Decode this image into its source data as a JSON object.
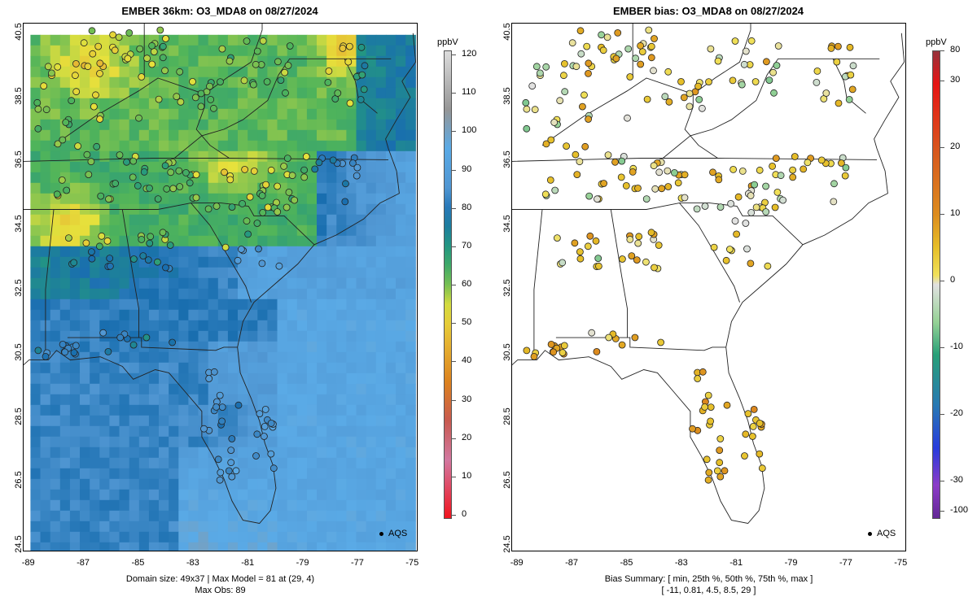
{
  "left": {
    "title": "EMBER 36km: O3_MDA8 on 08/27/2024",
    "colorbar_unit": "ppbV",
    "colorbar_ticks": [
      "0",
      "10",
      "20",
      "30",
      "40",
      "50",
      "60",
      "70",
      "80",
      "90",
      "100",
      "110",
      "120"
    ],
    "footer_line1": "Domain size: 49x37 | Max Model = 81 at (29, 4)",
    "footer_line2": "Max Obs: 89",
    "legend_label": "AQS"
  },
  "right": {
    "title": "EMBER bias: O3_MDA8 on 08/27/2024",
    "colorbar_unit": "ppbV",
    "colorbar_ticks": [
      "80",
      "30",
      "20",
      "10",
      "0",
      "-10",
      "-20",
      "-30",
      "-100"
    ],
    "footer_line1": "Bias Summary: [ min, 25th %, 50th %, 75th %, max ]",
    "footer_line2": "[ -11,   0.81,   4.5,   8.5,   29 ]",
    "legend_label": "AQS"
  },
  "axes": {
    "x_ticks": [
      "-89",
      "-87",
      "-85",
      "-83",
      "-81",
      "-79",
      "-77",
      "-75"
    ],
    "y_ticks": [
      "24.5",
      "26.5",
      "28.5",
      "30.5",
      "32.5",
      "34.5",
      "36.5",
      "38.5",
      "40.5"
    ],
    "x_range": [
      -89.2,
      -74.8
    ],
    "y_range": [
      24.3,
      40.8
    ]
  },
  "chart_data": [
    {
      "type": "heatmap",
      "title": "EMBER 36km: O3_MDA8 on 08/27/2024",
      "variable": "O3_MDA8",
      "units": "ppbV",
      "colorbar_range": [
        0,
        120
      ],
      "model_max": 81,
      "model_max_index": [
        29,
        4
      ],
      "domain_size": "49x37",
      "obs_max": 89,
      "observation_network": "AQS"
    },
    {
      "type": "scatter",
      "title": "EMBER bias: O3_MDA8 on 08/27/2024",
      "variable": "O3_MDA8 bias",
      "units": "ppbV",
      "colorbar_ticks": [
        80,
        30,
        20,
        10,
        0,
        -10,
        -20,
        -30,
        -100
      ],
      "bias_summary": {
        "min": -11,
        "p25": 0.81,
        "p50": 4.5,
        "p75": 8.5,
        "max": 29
      },
      "observation_network": "AQS"
    }
  ]
}
